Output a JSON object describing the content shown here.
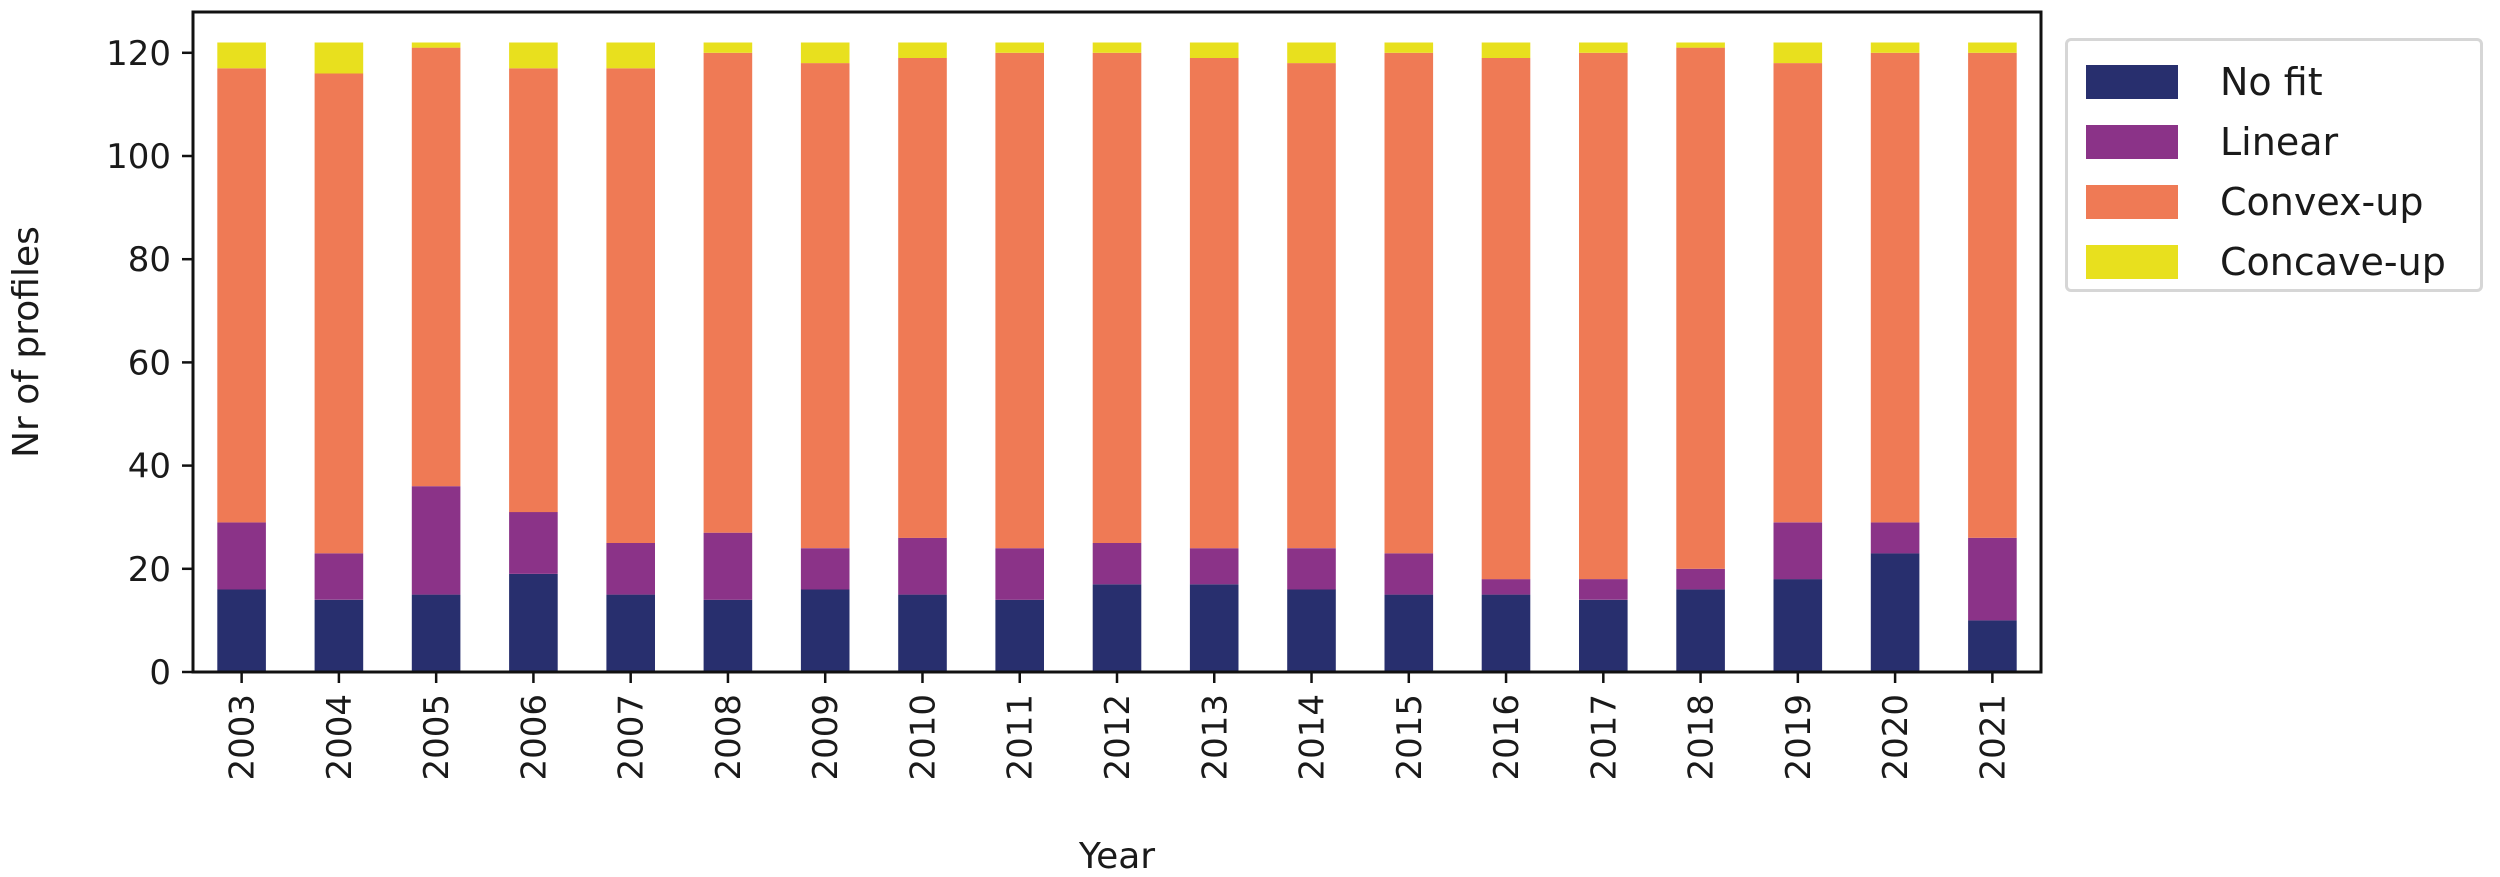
{
  "chart_data": {
    "type": "bar",
    "stacked": true,
    "title": "",
    "xlabel": "Year",
    "ylabel": "Nr of profiles",
    "ylim": [
      0,
      128
    ],
    "yticks": [
      0,
      20,
      40,
      60,
      80,
      100,
      120
    ],
    "grid": false,
    "legend_position": "outside-right-top",
    "categories": [
      "2003",
      "2004",
      "2005",
      "2006",
      "2007",
      "2008",
      "2009",
      "2010",
      "2011",
      "2012",
      "2013",
      "2014",
      "2015",
      "2016",
      "2017",
      "2018",
      "2019",
      "2020",
      "2021"
    ],
    "series": [
      {
        "name": "No fit",
        "color": "#282f6e",
        "values": [
          16,
          14,
          15,
          19,
          15,
          14,
          16,
          15,
          14,
          17,
          17,
          16,
          15,
          15,
          14,
          16,
          18,
          23,
          10
        ]
      },
      {
        "name": "Linear",
        "color": "#8b3388",
        "values": [
          13,
          9,
          21,
          12,
          10,
          13,
          8,
          11,
          10,
          8,
          7,
          8,
          8,
          3,
          4,
          4,
          11,
          6,
          16
        ]
      },
      {
        "name": "Convex-up",
        "color": "#ef7a55",
        "values": [
          88,
          93,
          85,
          86,
          92,
          93,
          94,
          93,
          96,
          95,
          95,
          94,
          97,
          101,
          102,
          101,
          89,
          91,
          94
        ]
      },
      {
        "name": "Concave-up",
        "color": "#e8e01e",
        "values": [
          5,
          6,
          1,
          5,
          5,
          2,
          4,
          3,
          2,
          2,
          3,
          4,
          2,
          3,
          2,
          1,
          4,
          2,
          2
        ]
      }
    ]
  },
  "legend": {
    "items": [
      {
        "label": "No fit",
        "color": "#282f6e"
      },
      {
        "label": "Linear",
        "color": "#8b3388"
      },
      {
        "label": "Convex-up",
        "color": "#ef7a55"
      },
      {
        "label": "Concave-up",
        "color": "#e8e01e"
      }
    ]
  },
  "axes": {
    "xlabel": "Year",
    "ylabel": "Nr of profiles"
  }
}
